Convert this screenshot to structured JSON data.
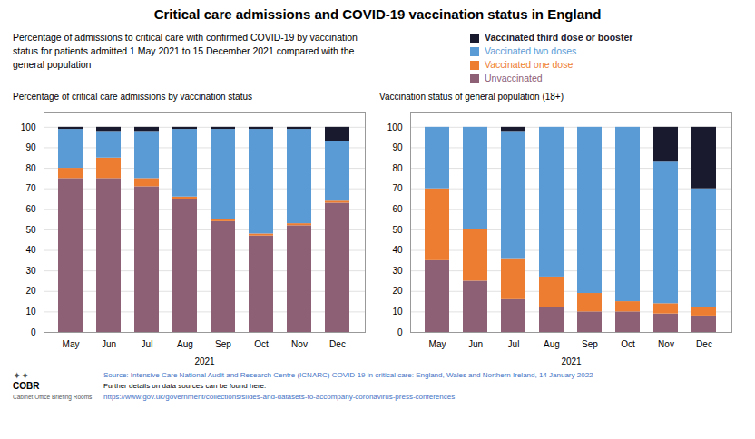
{
  "title": "Critical care admissions and COVID-19 vaccination status in England",
  "subtitle": "Percentage of admissions to critical care with confirmed COVID-19 by vaccination\nstatus for patients admitted 1 May 2021 to 15 December 2021 compared with the\ngeneral population",
  "annotations": [
    "✦✦",
    "COBR",
    "Cabinet Office Briefing Rooms",
    "Source:  Intensive Care National Audit and Research Centre (ICNARC) COVID-19 in critical care: England, Wales and Northern Ireland, 14 January 2022",
    "Further details on data sources can be found here:",
    "https://www.gov.uk/government/collections/slides-and-datasets-to-accompany-coronavirus-press-conferences"
  ],
  "chart_data": [
    {
      "type": "bar",
      "stacked": true,
      "title": "Percentage of critical care admissions by vaccination status",
      "x_label": "2021",
      "categories": [
        "May",
        "Jun",
        "Jul",
        "Aug",
        "Sep",
        "Oct",
        "Nov",
        "Dec"
      ],
      "series": [
        {
          "name": "Unvaccinated",
          "color": "#8e6075",
          "values": [
            75,
            75,
            71,
            65,
            54,
            47,
            52,
            63
          ]
        },
        {
          "name": "Vaccinated one dose",
          "color": "#ed7d31",
          "values": [
            5,
            10,
            4,
            1,
            1,
            1,
            1,
            1
          ]
        },
        {
          "name": "Vaccinated two doses",
          "color": "#5b9bd5",
          "values": [
            19,
            13,
            23,
            33,
            44,
            51,
            46,
            29
          ]
        },
        {
          "name": "Vaccinated third dose or booster",
          "color": "#1a1a2e",
          "values": [
            1,
            2,
            2,
            1,
            1,
            1,
            1,
            7
          ]
        }
      ],
      "ylim": [
        0,
        107
      ],
      "yticks": [
        0,
        10,
        20,
        30,
        40,
        50,
        60,
        70,
        80,
        90,
        100
      ],
      "grid": true
    },
    {
      "type": "bar",
      "stacked": true,
      "title": "Vaccination status of general population (18+)",
      "x_label": "2021",
      "categories": [
        "May",
        "Jun",
        "Jul",
        "Aug",
        "Sep",
        "Oct",
        "Nov",
        "Dec"
      ],
      "series": [
        {
          "name": "Unvaccinated",
          "color": "#8e6075",
          "values": [
            35,
            25,
            16,
            12,
            10,
            10,
            9,
            8
          ]
        },
        {
          "name": "Vaccinated one dose",
          "color": "#ed7d31",
          "values": [
            35,
            25,
            20,
            15,
            9,
            5,
            5,
            4
          ]
        },
        {
          "name": "Vaccinated two doses",
          "color": "#5b9bd5",
          "values": [
            30,
            50,
            62,
            73,
            81,
            85,
            69,
            58
          ]
        },
        {
          "name": "Vaccinated third dose or booster",
          "color": "#1a1a2e",
          "values": [
            0,
            0,
            2,
            0,
            0,
            0,
            17,
            30
          ]
        }
      ],
      "ylim": [
        0,
        107
      ],
      "yticks": [
        0,
        10,
        20,
        30,
        40,
        50,
        60,
        70,
        80,
        90,
        100
      ],
      "grid": true,
      "legend": "top right"
    }
  ]
}
